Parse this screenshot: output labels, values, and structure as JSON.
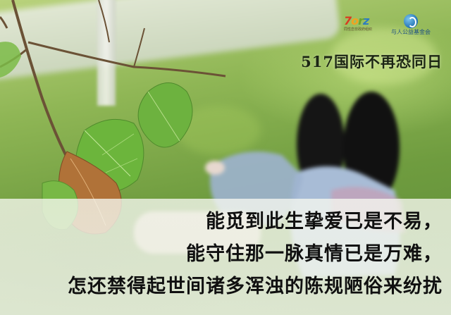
{
  "title": "517国际不再恐同日",
  "verse": [
    "能觅到此生挚爱已是不易，",
    "能守住那一脉真情已是万难，",
    "怎还禁得起世间诸多浑浊的陈规陋俗来纷扰"
  ],
  "logos": {
    "left": {
      "wordmark": "7orz",
      "tagline": "同性恋非政府组织"
    },
    "right": {
      "name": "与人公益基金会"
    }
  },
  "colors": {
    "text": "#101010",
    "band": "#f2f5ea",
    "grass": "#7aa446",
    "leaf": "#5fa33a"
  }
}
